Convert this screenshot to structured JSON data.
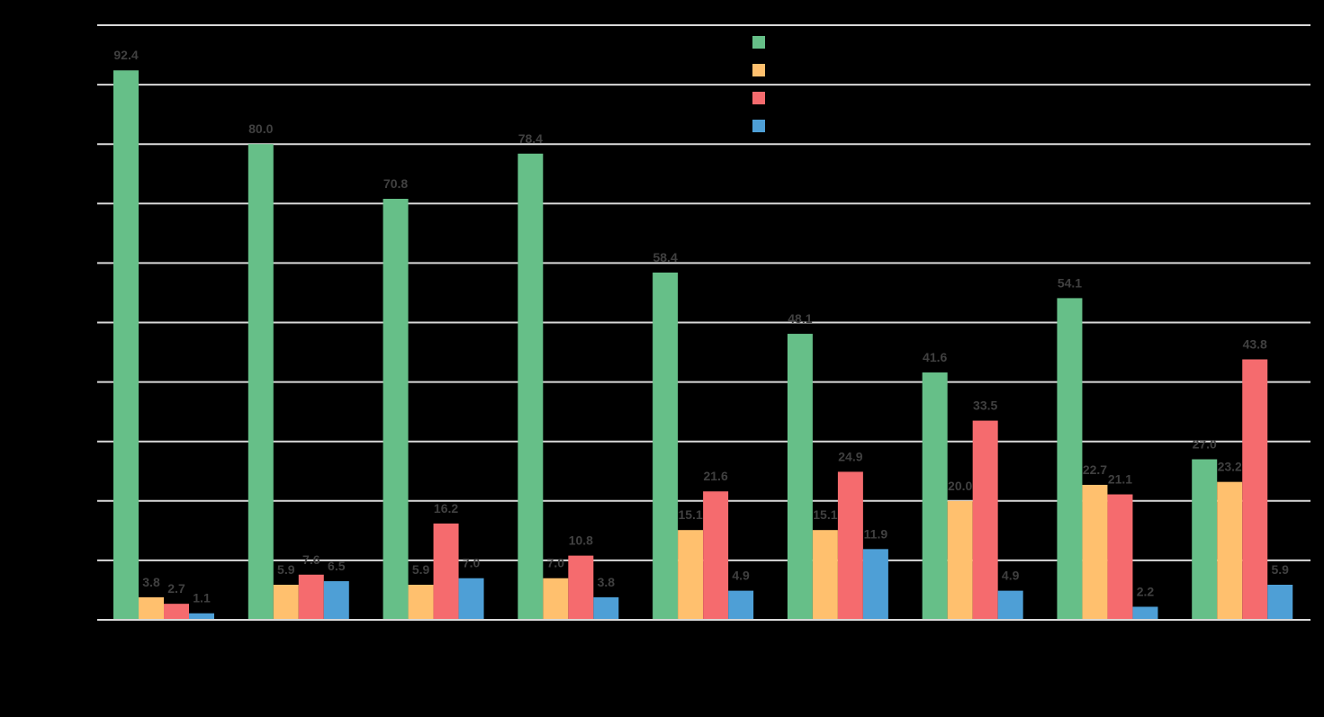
{
  "chart_data": {
    "type": "bar",
    "title": "",
    "xlabel": "",
    "ylabel": "",
    "categories": [
      "",
      "",
      "",
      "",
      "",
      "",
      "",
      "",
      ""
    ],
    "ylim": [
      0,
      100
    ],
    "grid": true,
    "legend_position": "top-center",
    "series": [
      {
        "color": "#66BF88",
        "values": [
          92.4,
          80.0,
          70.8,
          78.4,
          58.4,
          48.1,
          41.6,
          54.1,
          27.0
        ]
      },
      {
        "color": "#FFC06E",
        "values": [
          3.8,
          5.9,
          5.9,
          7.0,
          15.1,
          15.1,
          20.0,
          22.7,
          23.2
        ]
      },
      {
        "color": "#F56B6E",
        "values": [
          2.7,
          7.6,
          16.2,
          10.8,
          21.6,
          24.9,
          33.5,
          21.1,
          43.8
        ]
      },
      {
        "color": "#4E9FD6",
        "values": [
          1.1,
          6.5,
          7.0,
          3.8,
          4.9,
          11.9,
          4.9,
          2.2,
          5.9
        ]
      }
    ]
  }
}
